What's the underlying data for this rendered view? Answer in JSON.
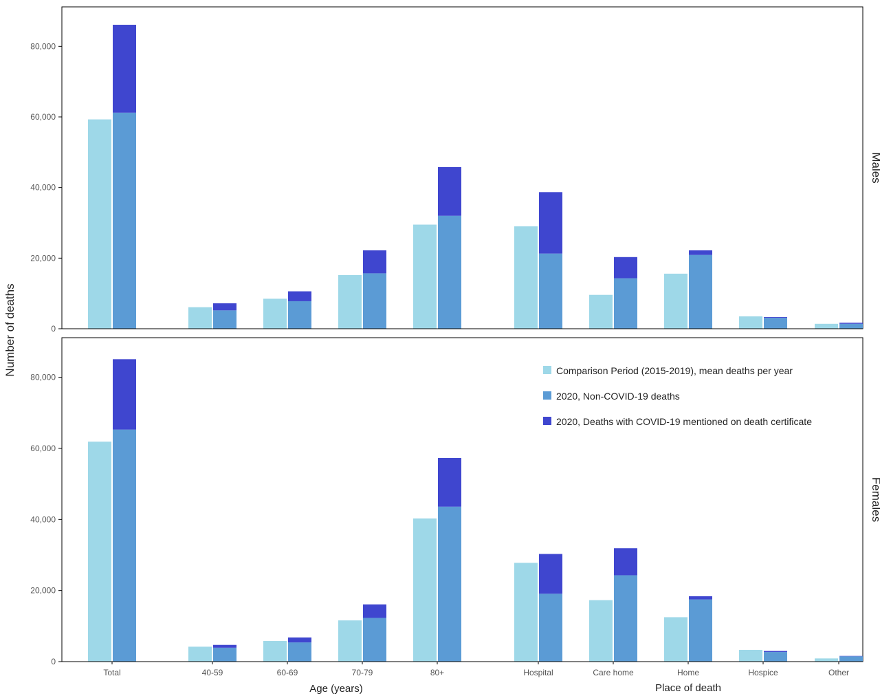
{
  "chart_data": {
    "type": "bar",
    "ylabel": "Number of deaths",
    "ylim": [
      0,
      90000
    ],
    "yticks": [
      0,
      20000,
      40000,
      60000,
      80000
    ],
    "ytick_labels": [
      "0",
      "20,000",
      "40,000",
      "60,000",
      "80,000"
    ],
    "categories": [
      "Total",
      "40-59",
      "60-69",
      "70-79",
      "80+",
      "Hospital",
      "Care home",
      "Home",
      "Hospice",
      "Other"
    ],
    "group_labels": [
      {
        "label": "Age (years)",
        "categories": [
          "40-59",
          "60-69",
          "70-79",
          "80+"
        ]
      },
      {
        "label": "Place of death",
        "categories": [
          "Hospital",
          "Care home",
          "Home",
          "Hospice",
          "Other"
        ]
      }
    ],
    "legend": {
      "placement": "top-right of lower panel",
      "entries": [
        {
          "name": "Comparison Period (2015-2019), mean deaths per year",
          "color": "#9ed8e8"
        },
        {
          "name": "2020, Non-COVID-19 deaths",
          "color": "#5b9bd5"
        },
        {
          "name": "2020, Deaths with COVID-19 mentioned on death certificate",
          "color": "#3f46cf"
        }
      ]
    },
    "panels": [
      {
        "name": "Males",
        "series": [
          {
            "name": "Comparison Period (2015-2019), mean deaths per year",
            "values": [
              59300,
              6100,
              8500,
              15200,
              29500,
              29000,
              9600,
              15600,
              3500,
              1400
            ]
          },
          {
            "name": "2020, Non-COVID-19 deaths",
            "values": [
              61200,
              5200,
              7800,
              15700,
              32000,
              21300,
              14300,
              20900,
              3100,
              1400
            ]
          },
          {
            "name": "2020, Deaths with COVID-19 mentioned on death certificate",
            "values": [
              24900,
              2000,
              2800,
              6500,
              13800,
              17400,
              6000,
              1300,
              200,
              300
            ]
          }
        ]
      },
      {
        "name": "Females",
        "series": [
          {
            "name": "Comparison Period (2015-2019), mean deaths per year",
            "values": [
              61900,
              4200,
              5800,
              11600,
              40300,
              27800,
              17300,
              12500,
              3300,
              900
            ]
          },
          {
            "name": "2020, Non-COVID-19 deaths",
            "values": [
              65300,
              3900,
              5400,
              12300,
              43600,
              19100,
              24300,
              17500,
              2700,
              1500
            ]
          },
          {
            "name": "2020, Deaths with COVID-19 mentioned on death certificate",
            "values": [
              19800,
              800,
              1400,
              3800,
              13700,
              11200,
              7600,
              900,
              300,
              100
            ]
          }
        ]
      }
    ]
  }
}
